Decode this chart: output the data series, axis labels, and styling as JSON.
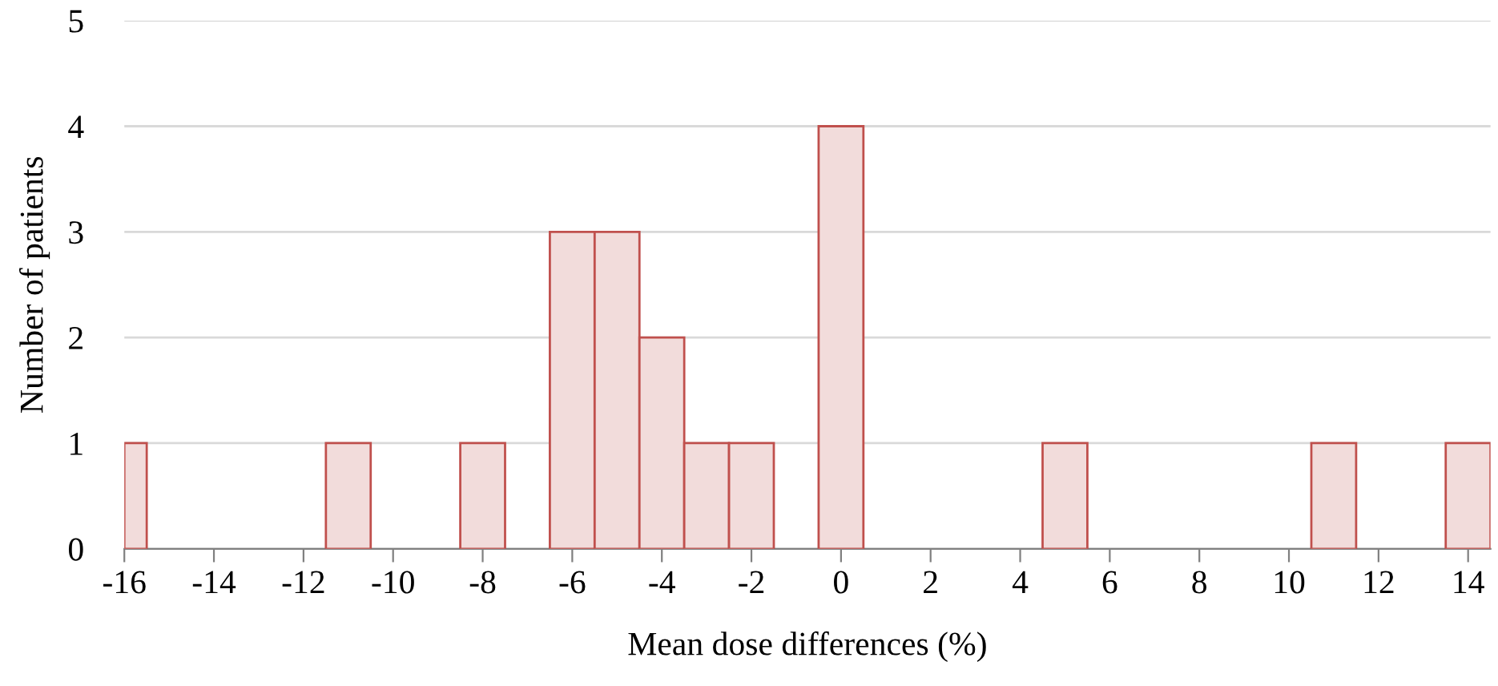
{
  "chart_data": {
    "type": "histogram",
    "xlabel": "Mean dose differences (%)",
    "ylabel": "Number of patients",
    "bins": [
      -16,
      -15.5,
      -11.5,
      -10.5,
      -8.5,
      -7.5,
      -6.5,
      -5.5,
      -4.5,
      -3.5,
      -2.5,
      -1.5,
      -0.5,
      0.5,
      4.5,
      5.5,
      10.5,
      11.5,
      13.5,
      14.5
    ],
    "values": [
      1,
      0,
      1,
      0,
      1,
      0,
      3,
      3,
      2,
      1,
      1,
      0,
      4,
      0,
      1,
      0,
      1,
      0,
      1
    ],
    "color": "#f2dcdb",
    "xlim": [
      -16,
      14.5
    ],
    "xticks": [
      -16,
      -14,
      -12,
      -10,
      -8,
      -6,
      -4,
      -2,
      0,
      2,
      4,
      6,
      8,
      10,
      12,
      14
    ],
    "ylim": [
      0,
      5
    ],
    "yticks": [
      0,
      1,
      2,
      3,
      4,
      5
    ],
    "grid": "y"
  }
}
